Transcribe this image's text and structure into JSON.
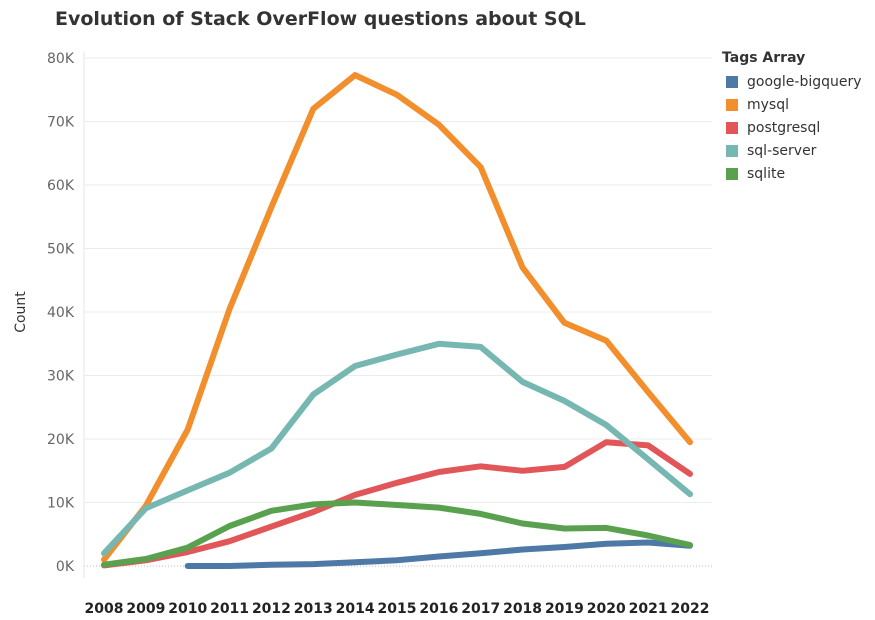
{
  "chart_data": {
    "type": "line",
    "title": "Evolution of Stack OverFlow questions about SQL",
    "xlabel": "",
    "ylabel": "Count",
    "ylim": [
      0,
      80000
    ],
    "yticks": [
      0,
      10000,
      20000,
      30000,
      40000,
      50000,
      60000,
      70000,
      80000
    ],
    "ytick_labels": [
      "0K",
      "10K",
      "20K",
      "30K",
      "40K",
      "50K",
      "60K",
      "70K",
      "80K"
    ],
    "categories": [
      "2008",
      "2009",
      "2010",
      "2011",
      "2012",
      "2013",
      "2014",
      "2015",
      "2016",
      "2017",
      "2018",
      "2019",
      "2020",
      "2021",
      "2022"
    ],
    "grid": true,
    "legend_placement": "right",
    "legend_title": "Tags Array",
    "series": [
      {
        "name": "google-bigquery",
        "color": "#4e79a7",
        "values": [
          null,
          null,
          0,
          0,
          200,
          300,
          600,
          900,
          1500,
          2000,
          2600,
          3000,
          3500,
          3700,
          3200
        ]
      },
      {
        "name": "mysql",
        "color": "#f28e2b",
        "values": [
          1000,
          9500,
          21500,
          40500,
          56500,
          72000,
          77300,
          74200,
          69500,
          62800,
          47000,
          38300,
          35500,
          27400,
          19500
        ]
      },
      {
        "name": "postgresql",
        "color": "#e15759",
        "values": [
          100,
          900,
          2200,
          3900,
          6200,
          8500,
          11200,
          13100,
          14800,
          15700,
          15000,
          15600,
          19500,
          19000,
          14500
        ]
      },
      {
        "name": "sql-server",
        "color": "#76b7b2",
        "values": [
          2000,
          9100,
          11900,
          14700,
          18500,
          27000,
          31500,
          33300,
          35000,
          34500,
          29000,
          26000,
          22200,
          16800,
          11300
        ]
      },
      {
        "name": "sqlite",
        "color": "#59a14f",
        "values": [
          200,
          1100,
          2900,
          6300,
          8700,
          9700,
          10000,
          9600,
          9200,
          8200,
          6700,
          5900,
          6000,
          4800,
          3300
        ]
      }
    ]
  }
}
